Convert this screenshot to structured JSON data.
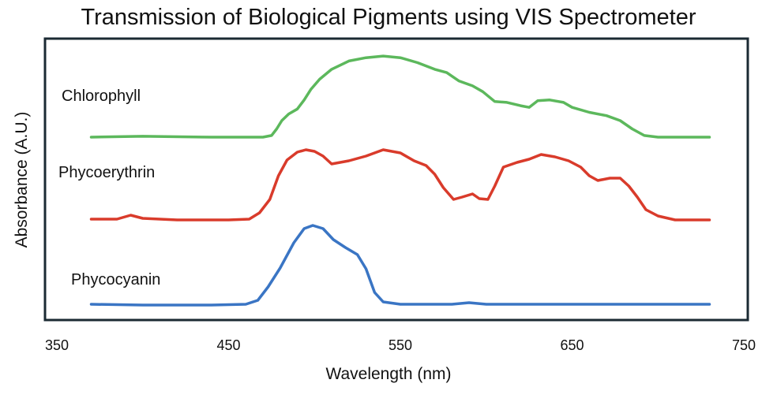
{
  "chart_data": {
    "type": "line",
    "title": "Transmission of Biological Pigments using VIS Spectrometer",
    "xlabel": "Wavelength (nm)",
    "ylabel": "Absorbance (A.U.)",
    "xlim": [
      350,
      750
    ],
    "x_ticks": [
      "350",
      "450",
      "550",
      "650",
      "750"
    ],
    "y_ticks_shown": false,
    "grid": false,
    "legend": "none",
    "series": [
      {
        "name": "Chlorophyll",
        "color": "#5cb85c",
        "points": [
          [
            370,
            0.0
          ],
          [
            400,
            0.01
          ],
          [
            440,
            0.0
          ],
          [
            470,
            0.0
          ],
          [
            475,
            0.02
          ],
          [
            478,
            0.1
          ],
          [
            481,
            0.2
          ],
          [
            485,
            0.28
          ],
          [
            490,
            0.34
          ],
          [
            494,
            0.45
          ],
          [
            498,
            0.58
          ],
          [
            503,
            0.7
          ],
          [
            510,
            0.82
          ],
          [
            520,
            0.92
          ],
          [
            530,
            0.96
          ],
          [
            540,
            0.98
          ],
          [
            550,
            0.96
          ],
          [
            560,
            0.9
          ],
          [
            570,
            0.82
          ],
          [
            577,
            0.78
          ],
          [
            584,
            0.68
          ],
          [
            592,
            0.62
          ],
          [
            598,
            0.55
          ],
          [
            605,
            0.43
          ],
          [
            612,
            0.42
          ],
          [
            620,
            0.38
          ],
          [
            625,
            0.36
          ],
          [
            630,
            0.44
          ],
          [
            637,
            0.45
          ],
          [
            645,
            0.42
          ],
          [
            650,
            0.36
          ],
          [
            660,
            0.3
          ],
          [
            670,
            0.26
          ],
          [
            678,
            0.2
          ],
          [
            685,
            0.1
          ],
          [
            692,
            0.02
          ],
          [
            700,
            0.0
          ],
          [
            730,
            0.0
          ]
        ]
      },
      {
        "name": "Phycoerythrin",
        "color": "#d93b2b",
        "points": [
          [
            370,
            0.0
          ],
          [
            385,
            0.0
          ],
          [
            393,
            0.05
          ],
          [
            400,
            0.01
          ],
          [
            420,
            -0.01
          ],
          [
            450,
            -0.01
          ],
          [
            462,
            0.0
          ],
          [
            468,
            0.08
          ],
          [
            474,
            0.25
          ],
          [
            479,
            0.55
          ],
          [
            484,
            0.75
          ],
          [
            490,
            0.85
          ],
          [
            495,
            0.88
          ],
          [
            500,
            0.86
          ],
          [
            505,
            0.8
          ],
          [
            510,
            0.7
          ],
          [
            520,
            0.74
          ],
          [
            530,
            0.8
          ],
          [
            540,
            0.88
          ],
          [
            550,
            0.84
          ],
          [
            558,
            0.74
          ],
          [
            565,
            0.68
          ],
          [
            570,
            0.57
          ],
          [
            575,
            0.4
          ],
          [
            581,
            0.25
          ],
          [
            586,
            0.28
          ],
          [
            592,
            0.32
          ],
          [
            596,
            0.26
          ],
          [
            601,
            0.25
          ],
          [
            605,
            0.42
          ],
          [
            610,
            0.66
          ],
          [
            618,
            0.72
          ],
          [
            625,
            0.76
          ],
          [
            632,
            0.82
          ],
          [
            640,
            0.79
          ],
          [
            648,
            0.74
          ],
          [
            655,
            0.66
          ],
          [
            660,
            0.55
          ],
          [
            665,
            0.49
          ],
          [
            672,
            0.52
          ],
          [
            678,
            0.52
          ],
          [
            683,
            0.42
          ],
          [
            688,
            0.28
          ],
          [
            693,
            0.12
          ],
          [
            700,
            0.04
          ],
          [
            710,
            -0.01
          ],
          [
            730,
            -0.01
          ]
        ]
      },
      {
        "name": "Phycocyanin",
        "color": "#3a75c4",
        "points": [
          [
            370,
            0.0
          ],
          [
            400,
            -0.01
          ],
          [
            440,
            -0.01
          ],
          [
            460,
            0.0
          ],
          [
            467,
            0.05
          ],
          [
            473,
            0.22
          ],
          [
            480,
            0.46
          ],
          [
            488,
            0.78
          ],
          [
            494,
            0.96
          ],
          [
            499,
            1.0
          ],
          [
            505,
            0.96
          ],
          [
            511,
            0.82
          ],
          [
            518,
            0.72
          ],
          [
            525,
            0.63
          ],
          [
            530,
            0.45
          ],
          [
            535,
            0.15
          ],
          [
            540,
            0.03
          ],
          [
            550,
            0.0
          ],
          [
            580,
            0.0
          ],
          [
            590,
            0.02
          ],
          [
            600,
            0.0
          ],
          [
            640,
            0.0
          ],
          [
            680,
            0.0
          ],
          [
            730,
            0.0
          ]
        ]
      }
    ]
  }
}
